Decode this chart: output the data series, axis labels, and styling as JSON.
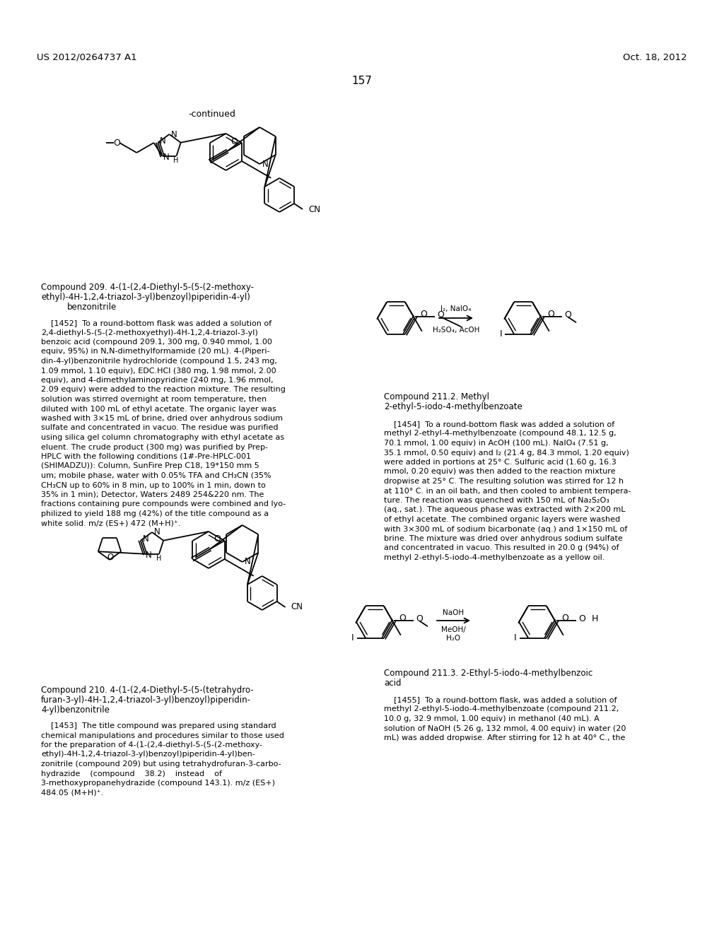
{
  "page_number": "157",
  "header_left": "US 2012/0264737 A1",
  "header_right": "Oct. 18, 2012",
  "continued_label": "-continued",
  "background_color": "#ffffff",
  "text_color": "#000000",
  "compound209_name_line1": "Compound 209. 4-(1-(2,4-Diethyl-5-(5-(2-methoxy-",
  "compound209_name_line2": "ethyl)-4H-1,2,4-triazol-3-yl)benzoyl)piperidin-4-yl)",
  "compound209_name_line3": "benzonitrile",
  "compound210_name_line1": "Compound 210. 4-(1-(2,4-Diethyl-5-(5-(tetrahydro-",
  "compound210_name_line2": "furan-3-yl)-4H-1,2,4-triazol-3-yl)benzoyl)piperidin-",
  "compound210_name_line3": "4-yl)benzonitrile",
  "compound2112_name_line1": "Compound 211.2. Methyl",
  "compound2112_name_line2": "2-ethyl-5-iodo-4-methylbenzoate",
  "compound2113_name_line1": "Compound 211.3. 2-Ethyl-5-iodo-4-methylbenzoic",
  "compound2113_name_line2": "acid"
}
